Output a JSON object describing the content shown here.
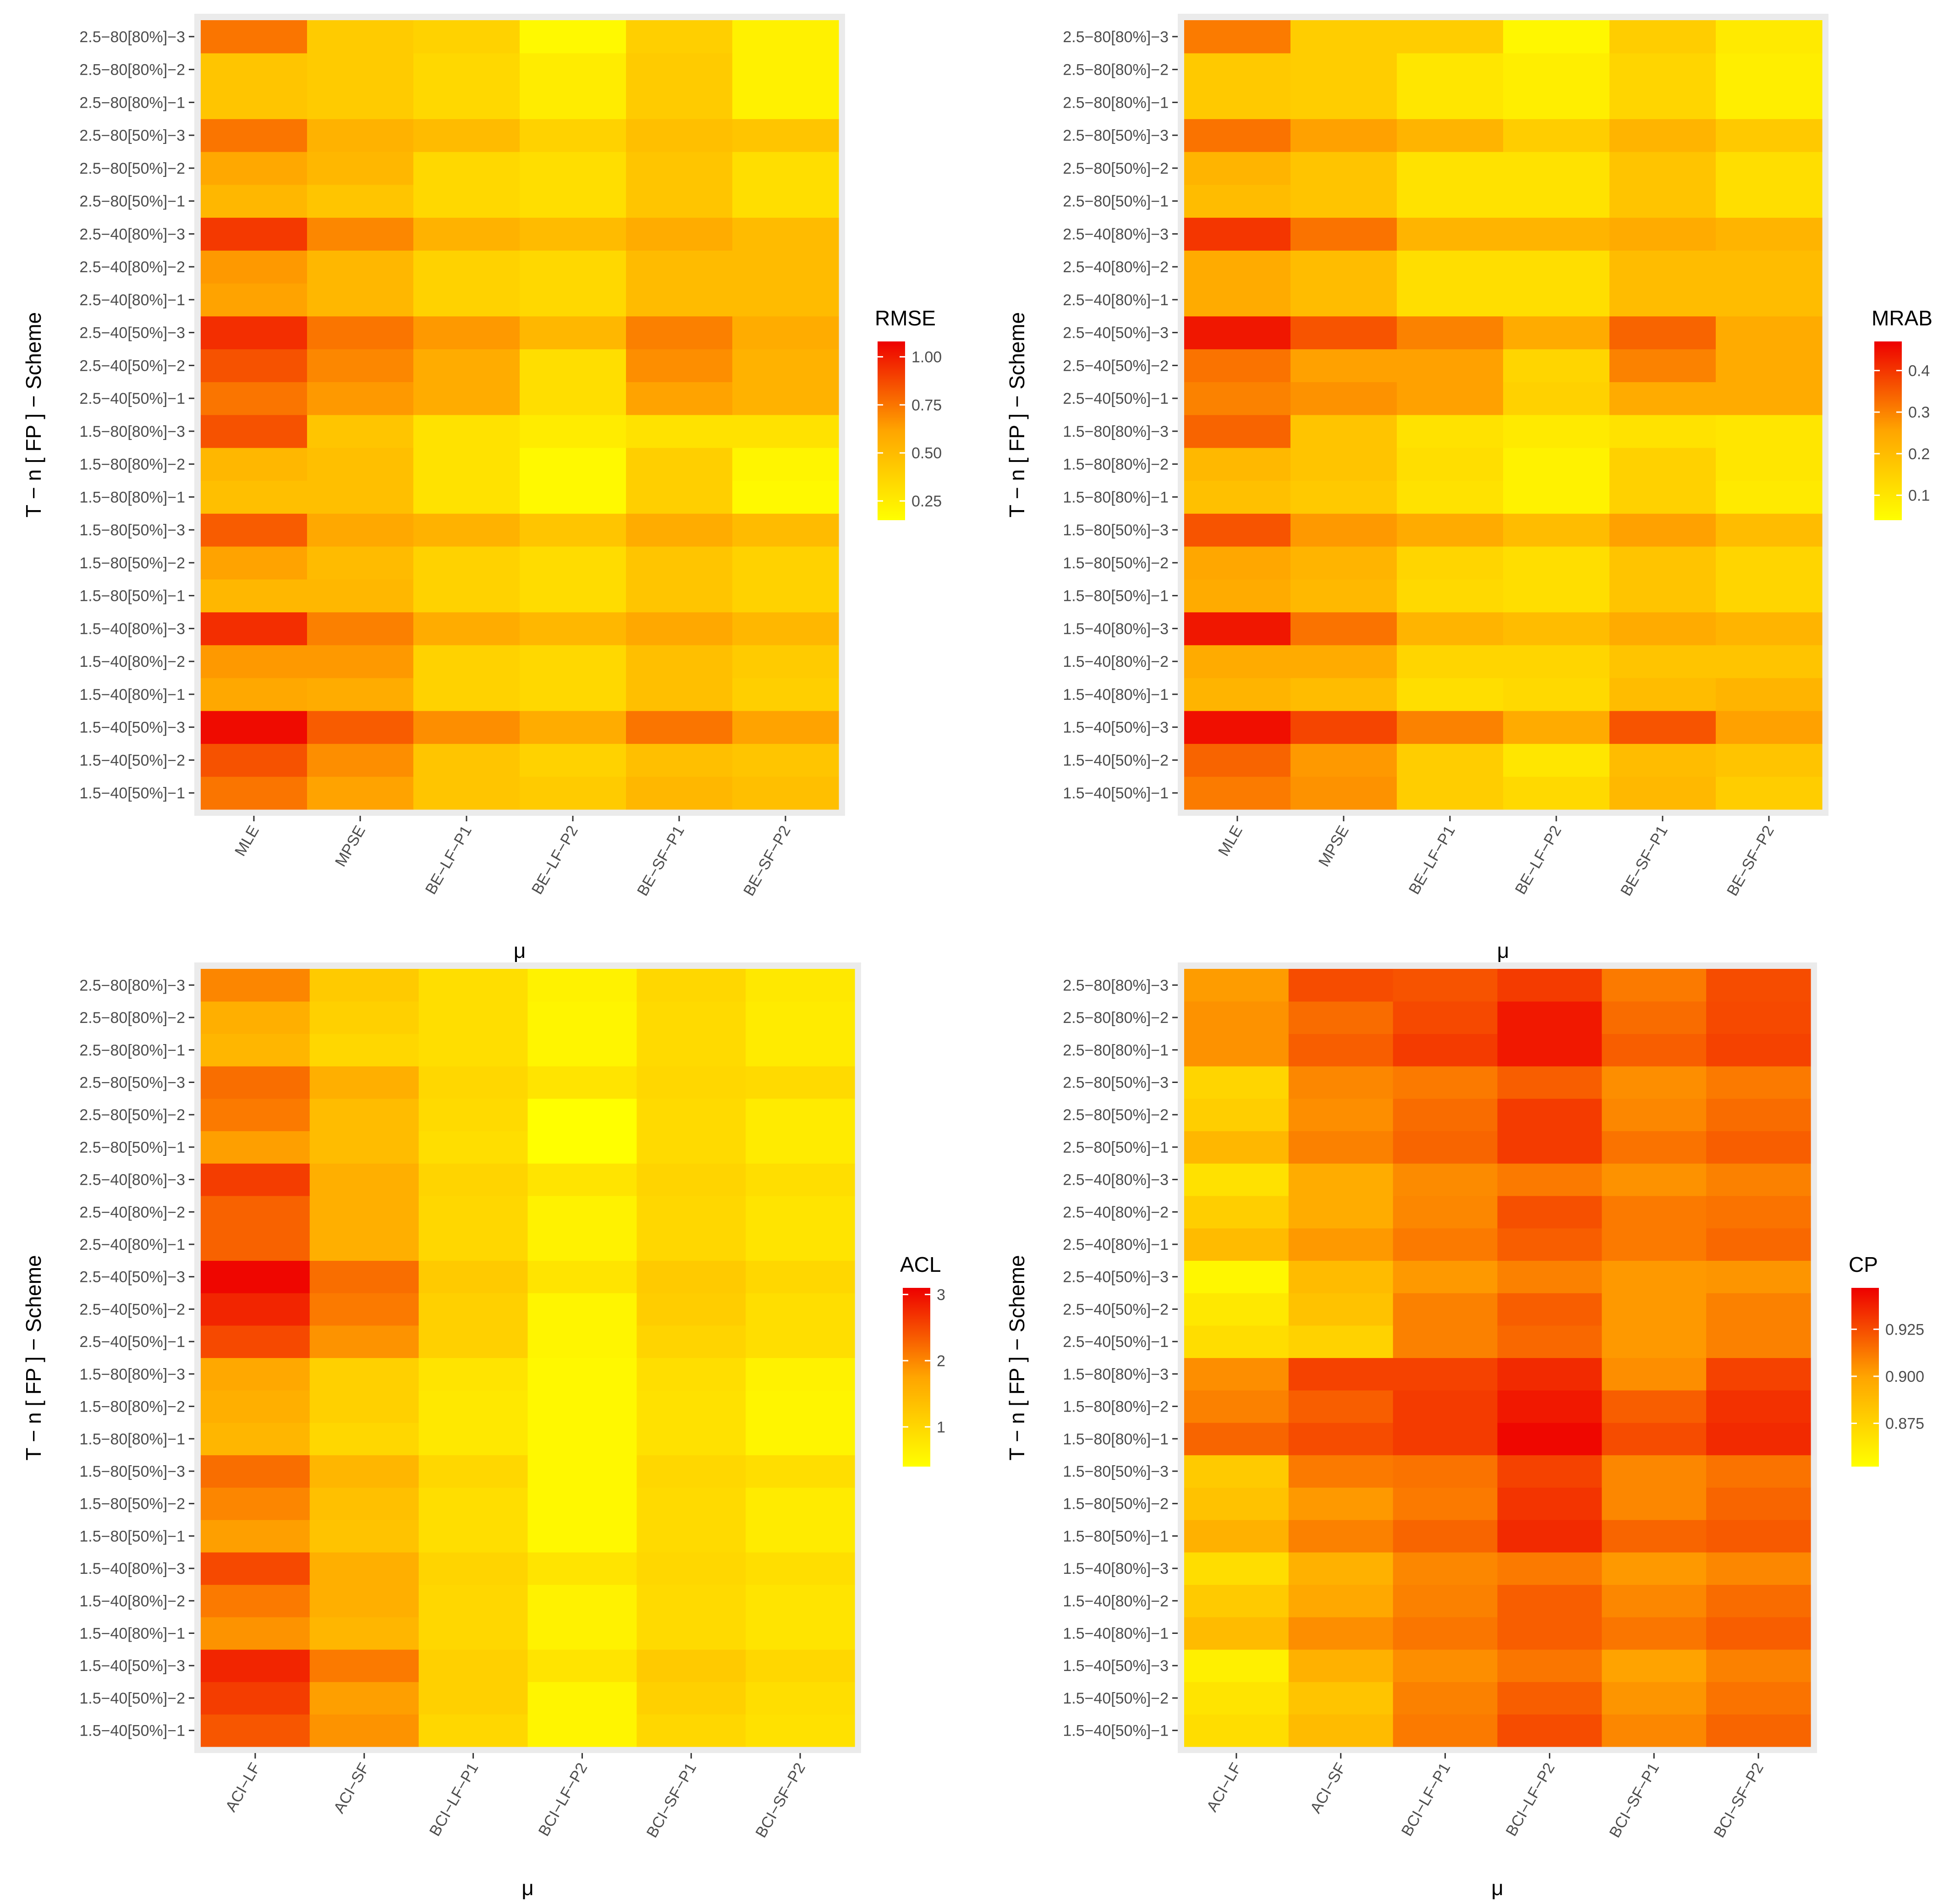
{
  "colors": {
    "low": "#FFFF00",
    "high": "#EE0000",
    "panel_bg": "#EBEBEB",
    "tick_text": "#4D4D4D"
  },
  "chart_data": [
    {
      "type": "heatmap",
      "legend_title": "RMSE",
      "xlabel": "μ",
      "ylabel": "T − n [ FP ] − Scheme",
      "columns": [
        "MLE",
        "MPSE",
        "BE−LF−P1",
        "BE−LF−P2",
        "BE−SF−P1",
        "BE−SF−P2"
      ],
      "rows": [
        "1.5−40[50%]−1",
        "1.5−40[50%]−2",
        "1.5−40[50%]−3",
        "1.5−40[80%]−1",
        "1.5−40[80%]−2",
        "1.5−40[80%]−3",
        "1.5−80[50%]−1",
        "1.5−80[50%]−2",
        "1.5−80[50%]−3",
        "1.5−80[80%]−1",
        "1.5−80[80%]−2",
        "1.5−80[80%]−3",
        "2.5−40[50%]−1",
        "2.5−40[50%]−2",
        "2.5−40[50%]−3",
        "2.5−40[80%]−1",
        "2.5−40[80%]−2",
        "2.5−40[80%]−3",
        "2.5−80[50%]−1",
        "2.5−80[50%]−2",
        "2.5−80[50%]−3",
        "2.5−80[80%]−1",
        "2.5−80[80%]−2",
        "2.5−80[80%]−3"
      ],
      "values": [
        [
          0.75,
          0.62,
          0.45,
          0.42,
          0.52,
          0.48
        ],
        [
          0.85,
          0.68,
          0.45,
          0.38,
          0.48,
          0.45
        ],
        [
          1.05,
          0.82,
          0.68,
          0.58,
          0.75,
          0.62
        ],
        [
          0.6,
          0.58,
          0.38,
          0.35,
          0.48,
          0.4
        ],
        [
          0.65,
          0.65,
          0.38,
          0.35,
          0.48,
          0.42
        ],
        [
          0.95,
          0.72,
          0.58,
          0.52,
          0.6,
          0.52
        ],
        [
          0.52,
          0.52,
          0.38,
          0.33,
          0.45,
          0.38
        ],
        [
          0.62,
          0.5,
          0.38,
          0.33,
          0.45,
          0.38
        ],
        [
          0.82,
          0.6,
          0.55,
          0.45,
          0.58,
          0.5
        ],
        [
          0.48,
          0.48,
          0.3,
          0.18,
          0.4,
          0.18
        ],
        [
          0.52,
          0.48,
          0.3,
          0.18,
          0.4,
          0.2
        ],
        [
          0.85,
          0.45,
          0.3,
          0.25,
          0.3,
          0.3
        ],
        [
          0.75,
          0.65,
          0.58,
          0.32,
          0.62,
          0.55
        ],
        [
          0.85,
          0.7,
          0.58,
          0.32,
          0.68,
          0.55
        ],
        [
          0.95,
          0.75,
          0.65,
          0.52,
          0.72,
          0.58
        ],
        [
          0.62,
          0.52,
          0.38,
          0.35,
          0.5,
          0.5
        ],
        [
          0.65,
          0.52,
          0.38,
          0.35,
          0.5,
          0.5
        ],
        [
          0.92,
          0.7,
          0.55,
          0.5,
          0.58,
          0.5
        ],
        [
          0.52,
          0.45,
          0.35,
          0.32,
          0.45,
          0.32
        ],
        [
          0.6,
          0.52,
          0.35,
          0.32,
          0.45,
          0.32
        ],
        [
          0.75,
          0.55,
          0.5,
          0.38,
          0.48,
          0.45
        ],
        [
          0.45,
          0.42,
          0.35,
          0.25,
          0.42,
          0.22
        ],
        [
          0.45,
          0.42,
          0.35,
          0.25,
          0.42,
          0.22
        ],
        [
          0.75,
          0.42,
          0.38,
          0.18,
          0.4,
          0.22
        ]
      ],
      "range": [
        0.15,
        1.08
      ],
      "legend_ticks": [
        {
          "v": 0.25,
          "label": "0.25"
        },
        {
          "v": 0.5,
          "label": "0.50"
        },
        {
          "v": 0.75,
          "label": "0.75"
        },
        {
          "v": 1.0,
          "label": "1.00"
        }
      ]
    },
    {
      "type": "heatmap",
      "legend_title": "MRAB",
      "xlabel": "μ",
      "ylabel": "T − n [ FP ] − Scheme",
      "columns": [
        "MLE",
        "MPSE",
        "BE−LF−P1",
        "BE−LF−P2",
        "BE−SF−P1",
        "BE−SF−P2"
      ],
      "rows": [
        "1.5−40[50%]−1",
        "1.5−40[50%]−2",
        "1.5−40[50%]−3",
        "1.5−40[80%]−1",
        "1.5−40[80%]−2",
        "1.5−40[80%]−3",
        "1.5−80[50%]−1",
        "1.5−80[50%]−2",
        "1.5−80[50%]−3",
        "1.5−80[80%]−1",
        "1.5−80[80%]−2",
        "1.5−80[80%]−3",
        "2.5−40[50%]−1",
        "2.5−40[50%]−2",
        "2.5−40[50%]−3",
        "2.5−40[80%]−1",
        "2.5−40[80%]−2",
        "2.5−40[80%]−3",
        "2.5−80[50%]−1",
        "2.5−80[50%]−2",
        "2.5−80[50%]−3",
        "2.5−80[80%]−1",
        "2.5−80[80%]−2",
        "2.5−80[80%]−3"
      ],
      "values": [
        [
          0.31,
          0.28,
          0.16,
          0.13,
          0.21,
          0.16
        ],
        [
          0.34,
          0.27,
          0.16,
          0.1,
          0.2,
          0.18
        ],
        [
          0.45,
          0.38,
          0.3,
          0.24,
          0.36,
          0.26
        ],
        [
          0.22,
          0.2,
          0.12,
          0.13,
          0.2,
          0.22
        ],
        [
          0.24,
          0.24,
          0.14,
          0.14,
          0.18,
          0.18
        ],
        [
          0.44,
          0.32,
          0.22,
          0.2,
          0.24,
          0.22
        ],
        [
          0.24,
          0.21,
          0.13,
          0.12,
          0.18,
          0.14
        ],
        [
          0.25,
          0.22,
          0.14,
          0.12,
          0.18,
          0.14
        ],
        [
          0.36,
          0.27,
          0.24,
          0.2,
          0.26,
          0.2
        ],
        [
          0.19,
          0.17,
          0.11,
          0.07,
          0.15,
          0.09
        ],
        [
          0.21,
          0.18,
          0.12,
          0.07,
          0.15,
          0.1
        ],
        [
          0.34,
          0.18,
          0.11,
          0.09,
          0.11,
          0.1
        ],
        [
          0.3,
          0.28,
          0.26,
          0.15,
          0.24,
          0.24
        ],
        [
          0.32,
          0.26,
          0.26,
          0.14,
          0.3,
          0.24
        ],
        [
          0.44,
          0.36,
          0.3,
          0.24,
          0.34,
          0.24
        ],
        [
          0.24,
          0.2,
          0.12,
          0.12,
          0.2,
          0.2
        ],
        [
          0.24,
          0.2,
          0.12,
          0.12,
          0.2,
          0.2
        ],
        [
          0.4,
          0.32,
          0.22,
          0.22,
          0.24,
          0.22
        ],
        [
          0.2,
          0.18,
          0.11,
          0.11,
          0.18,
          0.12
        ],
        [
          0.22,
          0.18,
          0.11,
          0.11,
          0.18,
          0.12
        ],
        [
          0.32,
          0.26,
          0.22,
          0.16,
          0.22,
          0.17
        ],
        [
          0.17,
          0.16,
          0.1,
          0.08,
          0.14,
          0.08
        ],
        [
          0.17,
          0.16,
          0.1,
          0.08,
          0.14,
          0.08
        ],
        [
          0.31,
          0.16,
          0.16,
          0.06,
          0.16,
          0.09
        ]
      ],
      "range": [
        0.04,
        0.47
      ],
      "legend_ticks": [
        {
          "v": 0.1,
          "label": "0.1"
        },
        {
          "v": 0.2,
          "label": "0.2"
        },
        {
          "v": 0.3,
          "label": "0.3"
        },
        {
          "v": 0.4,
          "label": "0.4"
        }
      ]
    },
    {
      "type": "heatmap",
      "legend_title": "ACL",
      "xlabel": "μ",
      "ylabel": "T − n [ FP ] − Scheme",
      "columns": [
        "ACI−LF",
        "ACI−SF",
        "BCI−LF−P1",
        "BCI−LF−P2",
        "BCI−SF−P1",
        "BCI−SF−P2"
      ],
      "rows": [
        "1.5−40[50%]−1",
        "1.5−40[50%]−2",
        "1.5−40[50%]−3",
        "1.5−40[80%]−1",
        "1.5−40[80%]−2",
        "1.5−40[80%]−3",
        "1.5−80[50%]−1",
        "1.5−80[50%]−2",
        "1.5−80[50%]−3",
        "1.5−80[80%]−1",
        "1.5−80[80%]−2",
        "1.5−80[80%]−3",
        "2.5−40[50%]−1",
        "2.5−40[50%]−2",
        "2.5−40[50%]−3",
        "2.5−40[80%]−1",
        "2.5−40[80%]−2",
        "2.5−40[80%]−3",
        "2.5−80[50%]−1",
        "2.5−80[50%]−2",
        "2.5−80[50%]−3",
        "2.5−80[80%]−1",
        "2.5−80[80%]−2",
        "2.5−80[80%]−3"
      ],
      "values": [
        [
          2.4,
          1.9,
          1.0,
          0.55,
          1.0,
          0.85
        ],
        [
          2.6,
          1.8,
          1.1,
          0.55,
          1.1,
          0.9
        ],
        [
          2.8,
          2.1,
          1.1,
          0.8,
          1.2,
          1.0
        ],
        [
          1.9,
          1.5,
          1.0,
          0.6,
          0.95,
          0.8
        ],
        [
          2.1,
          1.6,
          1.0,
          0.6,
          0.95,
          0.8
        ],
        [
          2.5,
          1.6,
          1.05,
          0.8,
          1.0,
          0.9
        ],
        [
          1.8,
          1.3,
          0.9,
          0.5,
          0.95,
          0.7
        ],
        [
          2.0,
          1.35,
          0.9,
          0.5,
          0.95,
          0.7
        ],
        [
          2.2,
          1.5,
          1.0,
          0.5,
          1.0,
          0.9
        ],
        [
          1.5,
          1.0,
          0.75,
          0.5,
          0.85,
          0.55
        ],
        [
          1.6,
          1.1,
          0.75,
          0.5,
          0.85,
          0.55
        ],
        [
          1.7,
          1.1,
          0.8,
          0.5,
          0.9,
          0.6
        ],
        [
          2.5,
          1.9,
          1.1,
          0.55,
          1.05,
          0.9
        ],
        [
          2.8,
          2.1,
          1.1,
          0.55,
          1.15,
          0.9
        ],
        [
          3.05,
          2.2,
          1.2,
          0.8,
          1.2,
          1.0
        ],
        [
          2.3,
          1.6,
          1.0,
          0.6,
          1.0,
          0.8
        ],
        [
          2.3,
          1.6,
          1.0,
          0.6,
          1.0,
          0.8
        ],
        [
          2.6,
          1.6,
          1.05,
          0.8,
          1.05,
          0.9
        ],
        [
          1.8,
          1.4,
          0.9,
          0.4,
          0.95,
          0.7
        ],
        [
          2.1,
          1.4,
          0.95,
          0.4,
          0.95,
          0.7
        ],
        [
          2.2,
          1.6,
          1.0,
          0.8,
          1.0,
          0.95
        ],
        [
          1.5,
          1.0,
          0.9,
          0.55,
          0.95,
          0.7
        ],
        [
          1.6,
          1.1,
          0.9,
          0.55,
          0.95,
          0.7
        ],
        [
          2.0,
          1.2,
          0.9,
          0.6,
          1.0,
          0.75
        ]
      ],
      "range": [
        0.4,
        3.1
      ],
      "legend_ticks": [
        {
          "v": 1,
          "label": "1"
        },
        {
          "v": 2,
          "label": "2"
        },
        {
          "v": 3,
          "label": "3"
        }
      ]
    },
    {
      "type": "heatmap",
      "legend_title": "CP",
      "xlabel": "μ",
      "ylabel": "T − n [ FP ] − Scheme",
      "columns": [
        "ACI−LF",
        "ACI−SF",
        "BCI−LF−P1",
        "BCI−LF−P2",
        "BCI−SF−P1",
        "BCI−SF−P2"
      ],
      "rows": [
        "1.5−40[50%]−1",
        "1.5−40[50%]−2",
        "1.5−40[50%]−3",
        "1.5−40[80%]−1",
        "1.5−40[80%]−2",
        "1.5−40[80%]−3",
        "1.5−80[50%]−1",
        "1.5−80[50%]−2",
        "1.5−80[50%]−3",
        "1.5−80[80%]−1",
        "1.5−80[80%]−2",
        "1.5−80[80%]−3",
        "2.5−40[50%]−1",
        "2.5−40[50%]−2",
        "2.5−40[50%]−3",
        "2.5−40[80%]−1",
        "2.5−40[80%]−2",
        "2.5−40[80%]−3",
        "2.5−80[50%]−1",
        "2.5−80[50%]−2",
        "2.5−80[50%]−3",
        "2.5−80[80%]−1",
        "2.5−80[80%]−2",
        "2.5−80[80%]−3"
      ],
      "values": [
        [
          0.87,
          0.888,
          0.912,
          0.925,
          0.908,
          0.918
        ],
        [
          0.866,
          0.883,
          0.91,
          0.92,
          0.904,
          0.914
        ],
        [
          0.86,
          0.893,
          0.906,
          0.913,
          0.9,
          0.91
        ],
        [
          0.888,
          0.906,
          0.913,
          0.92,
          0.913,
          0.92
        ],
        [
          0.88,
          0.898,
          0.91,
          0.92,
          0.908,
          0.916
        ],
        [
          0.87,
          0.893,
          0.908,
          0.912,
          0.903,
          0.908
        ],
        [
          0.893,
          0.91,
          0.918,
          0.935,
          0.918,
          0.921
        ],
        [
          0.884,
          0.903,
          0.912,
          0.932,
          0.908,
          0.918
        ],
        [
          0.88,
          0.912,
          0.914,
          0.928,
          0.908,
          0.914
        ],
        [
          0.918,
          0.925,
          0.93,
          0.945,
          0.925,
          0.935
        ],
        [
          0.91,
          0.92,
          0.93,
          0.94,
          0.92,
          0.933
        ],
        [
          0.906,
          0.928,
          0.928,
          0.935,
          0.906,
          0.928
        ],
        [
          0.87,
          0.876,
          0.91,
          0.917,
          0.903,
          0.91
        ],
        [
          0.864,
          0.884,
          0.91,
          0.92,
          0.903,
          0.91
        ],
        [
          0.856,
          0.888,
          0.903,
          0.91,
          0.903,
          0.904
        ],
        [
          0.888,
          0.903,
          0.912,
          0.92,
          0.912,
          0.917
        ],
        [
          0.878,
          0.896,
          0.908,
          0.924,
          0.912,
          0.914
        ],
        [
          0.868,
          0.896,
          0.907,
          0.912,
          0.905,
          0.91
        ],
        [
          0.89,
          0.91,
          0.918,
          0.93,
          0.914,
          0.92
        ],
        [
          0.878,
          0.906,
          0.916,
          0.93,
          0.908,
          0.916
        ],
        [
          0.874,
          0.908,
          0.912,
          0.92,
          0.906,
          0.912
        ],
        [
          0.905,
          0.92,
          0.93,
          0.94,
          0.92,
          0.928
        ],
        [
          0.905,
          0.916,
          0.926,
          0.94,
          0.916,
          0.926
        ],
        [
          0.902,
          0.925,
          0.923,
          0.93,
          0.912,
          0.925
        ]
      ],
      "range": [
        0.852,
        0.947
      ],
      "legend_ticks": [
        {
          "v": 0.875,
          "label": "0.875"
        },
        {
          "v": 0.9,
          "label": "0.900"
        },
        {
          "v": 0.925,
          "label": "0.925"
        }
      ]
    }
  ]
}
